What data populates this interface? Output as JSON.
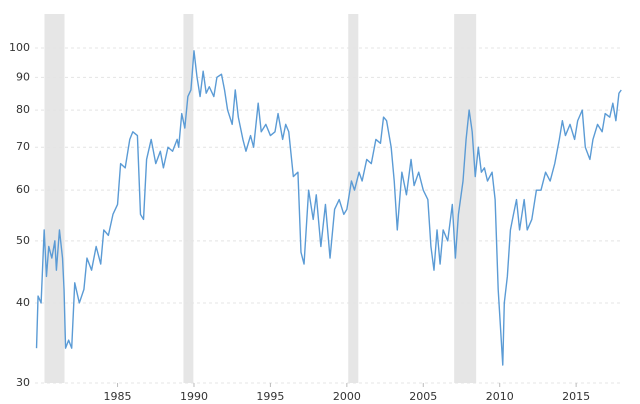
{
  "chart_data": {
    "type": "line",
    "log_scale": true,
    "grid": true,
    "color": "#5b9bd5",
    "shade_color": "#e6e6e6",
    "xlim": [
      1979.6,
      2018.0
    ],
    "ylim": [
      30,
      113
    ],
    "xticks": [
      1985,
      1990,
      1995,
      2000,
      2005,
      2010,
      2015
    ],
    "yticks": [
      30,
      40,
      50,
      60,
      70,
      80,
      90,
      100
    ],
    "shaded_periods": [
      [
        1980.22,
        1981.53
      ],
      [
        1989.31,
        1989.96
      ],
      [
        2000.09,
        2000.75
      ],
      [
        2007.02,
        2008.46
      ]
    ],
    "x": [
      1979.7,
      1979.8,
      1980.0,
      1980.2,
      1980.35,
      1980.5,
      1980.7,
      1980.9,
      1981.0,
      1981.2,
      1981.4,
      1981.5,
      1981.6,
      1981.8,
      1982.0,
      1982.2,
      1982.5,
      1982.8,
      1983.0,
      1983.3,
      1983.6,
      1983.9,
      1984.1,
      1984.4,
      1984.7,
      1985.0,
      1985.2,
      1985.5,
      1985.8,
      1986.0,
      1986.3,
      1986.5,
      1986.7,
      1986.9,
      1987.2,
      1987.5,
      1987.8,
      1988.0,
      1988.3,
      1988.6,
      1988.9,
      1989.0,
      1989.2,
      1989.4,
      1989.6,
      1989.8,
      1990.0,
      1990.2,
      1990.4,
      1990.6,
      1990.8,
      1991.0,
      1991.3,
      1991.5,
      1991.8,
      1992.0,
      1992.2,
      1992.5,
      1992.7,
      1992.9,
      1993.2,
      1993.4,
      1993.7,
      1993.9,
      1994.2,
      1994.4,
      1994.7,
      1995.0,
      1995.3,
      1995.5,
      1995.8,
      1996.0,
      1996.2,
      1996.5,
      1996.8,
      1997.0,
      1997.2,
      1997.5,
      1997.8,
      1998.0,
      1998.3,
      1998.6,
      1998.9,
      1999.2,
      1999.5,
      1999.8,
      2000.0,
      2000.3,
      2000.5,
      2000.8,
      2001.0,
      2001.3,
      2001.6,
      2001.9,
      2002.2,
      2002.4,
      2002.6,
      2002.9,
      2003.1,
      2003.3,
      2003.6,
      2003.9,
      2004.2,
      2004.4,
      2004.7,
      2005.0,
      2005.3,
      2005.5,
      2005.7,
      2005.9,
      2006.1,
      2006.3,
      2006.6,
      2006.9,
      2007.1,
      2007.3,
      2007.6,
      2007.8,
      2008.0,
      2008.2,
      2008.4,
      2008.6,
      2008.8,
      2009.0,
      2009.2,
      2009.5,
      2009.7,
      2009.9,
      2010.2,
      2010.3,
      2010.5,
      2010.7,
      2010.9,
      2011.1,
      2011.3,
      2011.6,
      2011.8,
      2012.1,
      2012.4,
      2012.7,
      2013.0,
      2013.3,
      2013.6,
      2013.9,
      2014.1,
      2014.3,
      2014.6,
      2014.9,
      2015.1,
      2015.4,
      2015.6,
      2015.9,
      2016.1,
      2016.4,
      2016.7,
      2016.9,
      2017.2,
      2017.4,
      2017.6,
      2017.8,
      2017.95
    ],
    "values": [
      34,
      41,
      40,
      52,
      44,
      49,
      47,
      50,
      45,
      52,
      47,
      42,
      34,
      35,
      34,
      43,
      40,
      42,
      47,
      45,
      49,
      46,
      52,
      51,
      55,
      57,
      66,
      65,
      72,
      74,
      73,
      55,
      54,
      67,
      72,
      66,
      69,
      65,
      70,
      69,
      72,
      70,
      79,
      75,
      84,
      86,
      99,
      90,
      84,
      92,
      85,
      87,
      84,
      90,
      91,
      86,
      80,
      76,
      86,
      78,
      72,
      69,
      73,
      70,
      82,
      74,
      76,
      73,
      74,
      79,
      72,
      76,
      74,
      63,
      64,
      48,
      46,
      60,
      54,
      59,
      49,
      57,
      47,
      56,
      58,
      55,
      56,
      62,
      60,
      64,
      62,
      67,
      66,
      72,
      71,
      78,
      77,
      70,
      62,
      52,
      64,
      59,
      67,
      61,
      64,
      60,
      58,
      49,
      45,
      52,
      46,
      52,
      50,
      57,
      47,
      55,
      62,
      72,
      80,
      74,
      63,
      70,
      64,
      65,
      62,
      64,
      58,
      42,
      32,
      40,
      44,
      52,
      55,
      58,
      52,
      58,
      52,
      54,
      60,
      60,
      64,
      62,
      66,
      72,
      77,
      73,
      76,
      72,
      77,
      80,
      70,
      67,
      72,
      76,
      74,
      79,
      78,
      82,
      77,
      85,
      86
    ]
  }
}
